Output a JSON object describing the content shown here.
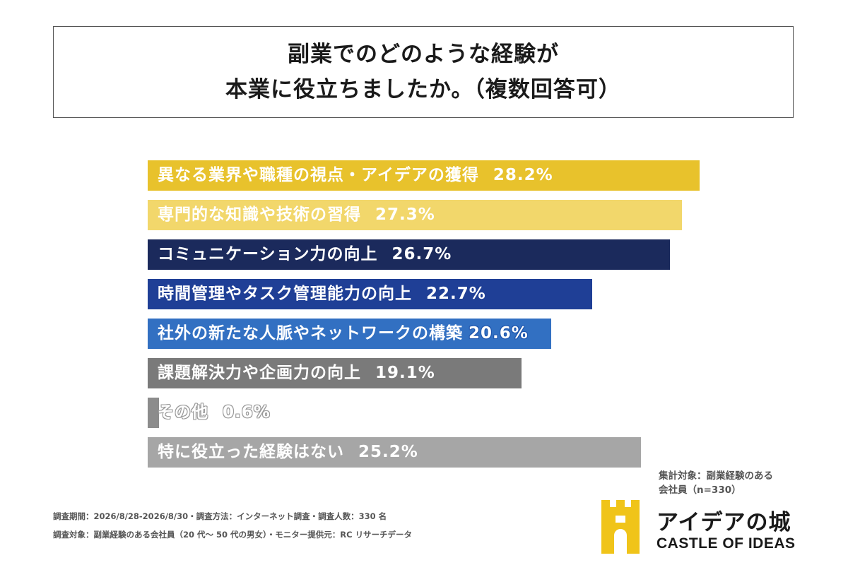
{
  "title": {
    "line1": "副業でのどのような経験が",
    "line2": "本業に役立ちましたか。（複数回答可）"
  },
  "chart_data": {
    "type": "bar",
    "orientation": "horizontal",
    "categories": [
      "異なる業界や職種の視点・アイデアの獲得",
      "専門的な知識や技術の習得",
      "コミュニケーション力の向上",
      "時間管理やタスク管理能力の向上",
      "社外の新たな人脈やネットワークの構築",
      "課題解決力や企画力の向上",
      "その他",
      "特に役立った経験はない"
    ],
    "values": [
      28.2,
      27.3,
      26.7,
      22.7,
      20.6,
      19.1,
      0.6,
      25.2
    ],
    "value_labels": [
      "28.2%",
      "27.3%",
      "26.7%",
      "22.7%",
      "20.6%",
      "19.1%",
      "0.6%",
      "25.2%"
    ],
    "colors": [
      "#e8c22c",
      "#f2d76b",
      "#1b2a5c",
      "#1f3f96",
      "#3270c2",
      "#7a7a7a",
      "#8c8c8c",
      "#a6a6a6"
    ],
    "xlim": [
      0,
      28.2
    ],
    "grid": false
  },
  "note": {
    "line1": "集計対象：副業経験のある",
    "line2": "会社員（n=330）"
  },
  "footer": {
    "line1": "調査期間：2026/8/28-2026/8/30・調査方法：インターネット調査・調査人数：330 名",
    "line2": "調査対象：副業経験のある会社員（20 代〜 50 代の男女）・モニター提供元：RC リサーチデータ"
  },
  "logo": {
    "name_ja": "アイデアの城",
    "name_en": "CASTLE OF IDEAS",
    "accent": "#f0c419",
    "icon": "castle-tower-icon"
  }
}
